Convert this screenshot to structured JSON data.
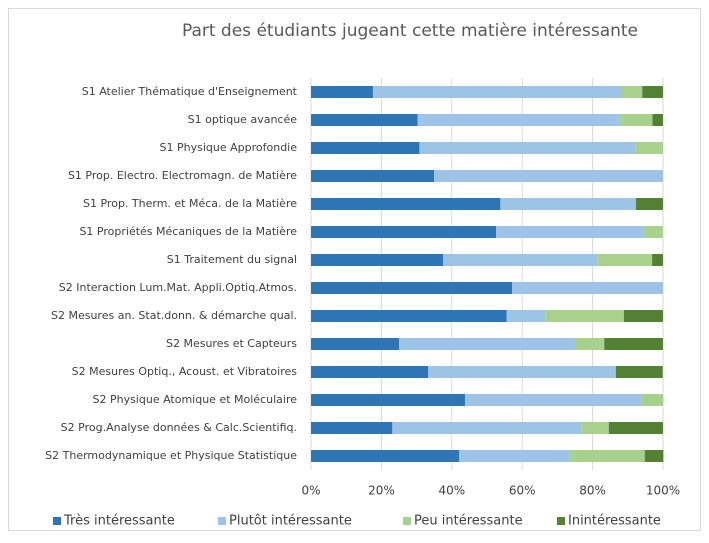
{
  "chart_data": {
    "type": "stacked-barh",
    "title": "Part des étudiants jugeant cette matière intéressante",
    "categories": [
      "S1 Atelier Thématique d'Enseignement",
      "S1 optique avancée",
      "S1 Physique Approfondie",
      "S1 Prop. Electro. Electromagn. de Matière",
      "S1 Prop. Therm. et Méca. de la Matière",
      "S1 Propriétés Mécaniques de la Matière",
      "S1 Traitement du signal",
      "S2 Interaction Lum.Mat. Appli.Optiq.Atmos.",
      "S2 Mesures an. Stat.donn. & démarche qual.",
      "S2 Mesures et Capteurs",
      "S2 Mesures Optiq., Acoust. et Vibratoires",
      "S2 Physique Atomique et Moléculaire",
      "S2 Prog.Analyse données & Calc.Scientifiq.",
      "S2 Thermodynamique et Physique Statistique"
    ],
    "series": [
      {
        "name": "Très intéressante",
        "color": "#2e75b6",
        "values": [
          17.6,
          30.3,
          30.8,
          35,
          53.8,
          52.6,
          37.5,
          57.1,
          55.6,
          25,
          33.3,
          43.8,
          23.1,
          42.1
        ]
      },
      {
        "name": "Plutôt intéressante",
        "color": "#9dc3e6",
        "values": [
          70.6,
          57.6,
          61.5,
          65,
          38.5,
          42.1,
          43.8,
          42.9,
          11.1,
          50,
          53.3,
          50,
          53.8,
          31.6
        ]
      },
      {
        "name": "Peu intéressante",
        "color": "#a9d18e",
        "values": [
          5.9,
          9.1,
          7.7,
          0,
          0,
          5.3,
          15.6,
          0,
          22.2,
          8.3,
          0,
          6.3,
          7.7,
          21.1
        ]
      },
      {
        "name": "Inintéressante",
        "color": "#548235",
        "values": [
          5.9,
          3.0,
          0,
          0,
          7.7,
          0,
          3.1,
          0,
          11.1,
          16.7,
          13.3,
          0,
          15.4,
          5.3
        ]
      }
    ],
    "xlim": [
      0,
      100
    ],
    "xticks": [
      {
        "value": 0,
        "label": "0%"
      },
      {
        "value": 20,
        "label": "20%"
      },
      {
        "value": 40,
        "label": "40%"
      },
      {
        "value": 60,
        "label": "60%"
      },
      {
        "value": 80,
        "label": "80%"
      },
      {
        "value": 100,
        "label": "100%"
      }
    ],
    "grid": true,
    "legend": "bottom"
  }
}
